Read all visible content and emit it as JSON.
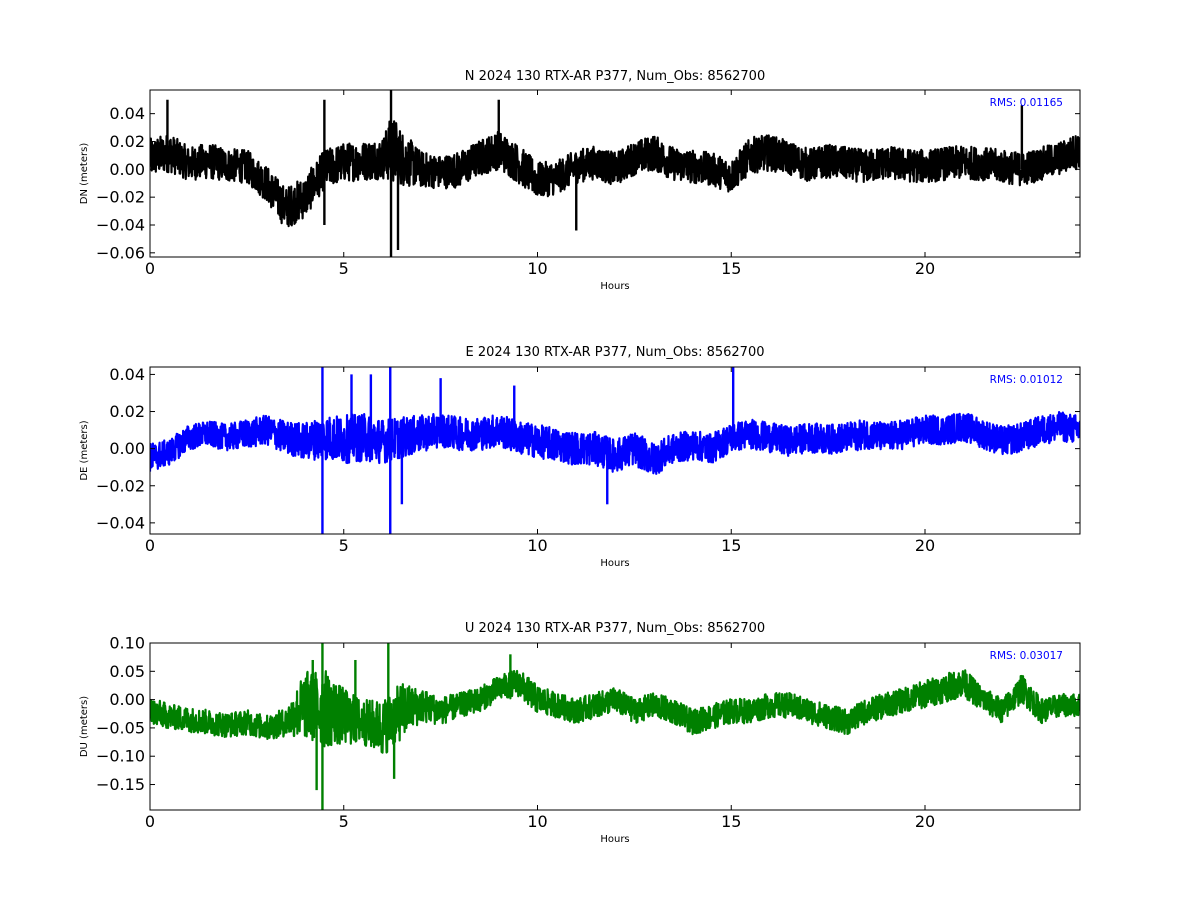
{
  "chart_data": [
    {
      "type": "line",
      "title": "N 2024 130 RTX-AR  P377, Num_Obs: 8562700",
      "xlabel": "Hours",
      "ylabel": "DN (meters)",
      "xlim": [
        0,
        24
      ],
      "ylim": [
        -0.063,
        0.057
      ],
      "xticks": [
        0,
        5,
        10,
        15,
        20
      ],
      "xtick_labels": [
        "0",
        "5",
        "10",
        "15",
        "20"
      ],
      "yticks": [
        0.04,
        0.02,
        0.0,
        -0.02,
        -0.04,
        -0.06
      ],
      "ytick_labels": [
        "0.04",
        "0.02",
        "0.00",
        "−0.02",
        "−0.04",
        "−0.06"
      ],
      "annotation": "RMS:  0.01165",
      "grid": false,
      "series": [
        {
          "color": "#000000",
          "x": [
            0,
            0.5,
            1,
            1.5,
            2,
            2.5,
            3,
            3.5,
            4,
            4.5,
            5,
            5.5,
            6,
            6.25,
            6.5,
            7,
            7.5,
            8,
            8.5,
            9,
            9.5,
            10,
            10.5,
            11,
            11.5,
            12,
            12.5,
            13,
            13.5,
            14,
            14.5,
            15,
            15.5,
            16,
            16.5,
            17,
            17.5,
            18,
            18.5,
            19,
            19.5,
            20,
            20.5,
            21,
            21.5,
            22,
            22.5,
            23,
            23.5,
            24
          ],
          "values": [
            0.008,
            0.012,
            0.004,
            0.006,
            0.003,
            0.002,
            -0.01,
            -0.028,
            -0.02,
            0.0,
            0.005,
            0.006,
            0.008,
            0.015,
            0.008,
            0.0,
            -0.002,
            0.0,
            0.008,
            0.014,
            0.004,
            -0.008,
            -0.006,
            0.002,
            0.005,
            0.0,
            0.008,
            0.012,
            0.004,
            0.002,
            0.0,
            -0.005,
            0.01,
            0.012,
            0.008,
            0.003,
            0.006,
            0.004,
            0.002,
            0.005,
            0.003,
            0.002,
            0.004,
            0.005,
            0.004,
            0.002,
            0.0,
            0.004,
            0.008,
            0.014
          ],
          "spread": [
            0.014,
            0.014,
            0.012,
            0.013,
            0.012,
            0.012,
            0.013,
            0.015,
            0.015,
            0.014,
            0.014,
            0.014,
            0.015,
            0.025,
            0.02,
            0.013,
            0.012,
            0.013,
            0.013,
            0.014,
            0.014,
            0.013,
            0.012,
            0.012,
            0.012,
            0.012,
            0.012,
            0.013,
            0.012,
            0.012,
            0.012,
            0.012,
            0.013,
            0.013,
            0.012,
            0.012,
            0.012,
            0.012,
            0.012,
            0.012,
            0.012,
            0.012,
            0.012,
            0.012,
            0.012,
            0.012,
            0.012,
            0.012,
            0.012,
            0.013
          ],
          "spikes": [
            [
              4.5,
              0.05
            ],
            [
              4.5,
              -0.04
            ],
            [
              6.22,
              0.057
            ],
            [
              6.22,
              -0.063
            ],
            [
              6.4,
              -0.058
            ],
            [
              11.0,
              -0.044
            ],
            [
              9.0,
              0.05
            ],
            [
              22.5,
              0.046
            ],
            [
              0.45,
              0.05
            ]
          ]
        }
      ]
    },
    {
      "type": "line",
      "title": "E 2024 130 RTX-AR  P377, Num_Obs: 8562700",
      "xlabel": "Hours",
      "ylabel": "DE (meters)",
      "xlim": [
        0,
        24
      ],
      "ylim": [
        -0.046,
        0.044
      ],
      "xticks": [
        0,
        5,
        10,
        15,
        20
      ],
      "xtick_labels": [
        "0",
        "5",
        "10",
        "15",
        "20"
      ],
      "yticks": [
        0.04,
        0.02,
        0.0,
        -0.02,
        -0.04
      ],
      "ytick_labels": [
        "0.04",
        "0.02",
        "0.00",
        "−0.02",
        "−0.04"
      ],
      "annotation": "RMS:  0.01012",
      "grid": false,
      "series": [
        {
          "color": "#0000ff",
          "x": [
            0,
            0.5,
            1,
            1.5,
            2,
            2.5,
            3,
            3.5,
            4,
            4.5,
            5,
            5.5,
            6,
            6.5,
            7,
            7.5,
            8,
            8.5,
            9,
            9.5,
            10,
            10.5,
            11,
            11.5,
            12,
            12.5,
            13,
            13.5,
            14,
            14.5,
            15,
            15.5,
            16,
            16.5,
            17,
            17.5,
            18,
            18.5,
            19,
            19.5,
            20,
            20.5,
            21,
            21.5,
            22,
            22.5,
            23,
            23.5,
            24
          ],
          "values": [
            -0.005,
            -0.002,
            0.006,
            0.008,
            0.006,
            0.008,
            0.01,
            0.006,
            0.004,
            0.006,
            0.005,
            0.006,
            0.004,
            0.006,
            0.008,
            0.01,
            0.008,
            0.008,
            0.01,
            0.006,
            0.004,
            0.002,
            0.0,
            0.0,
            -0.004,
            0.0,
            -0.006,
            0.0,
            0.002,
            0.0,
            0.006,
            0.008,
            0.006,
            0.004,
            0.006,
            0.005,
            0.006,
            0.008,
            0.006,
            0.008,
            0.01,
            0.01,
            0.012,
            0.008,
            0.004,
            0.006,
            0.01,
            0.012,
            0.01
          ],
          "spread": [
            0.008,
            0.007,
            0.007,
            0.007,
            0.007,
            0.008,
            0.008,
            0.009,
            0.01,
            0.012,
            0.013,
            0.013,
            0.012,
            0.011,
            0.01,
            0.009,
            0.009,
            0.009,
            0.009,
            0.009,
            0.009,
            0.009,
            0.009,
            0.009,
            0.009,
            0.009,
            0.009,
            0.008,
            0.008,
            0.008,
            0.008,
            0.008,
            0.008,
            0.008,
            0.008,
            0.008,
            0.008,
            0.008,
            0.008,
            0.008,
            0.008,
            0.008,
            0.008,
            0.008,
            0.008,
            0.008,
            0.008,
            0.008,
            0.008
          ],
          "spikes": [
            [
              4.45,
              0.044
            ],
            [
              4.45,
              -0.046
            ],
            [
              6.2,
              0.044
            ],
            [
              6.2,
              -0.046
            ],
            [
              5.2,
              0.04
            ],
            [
              5.7,
              0.04
            ],
            [
              6.5,
              -0.03
            ],
            [
              7.5,
              0.038
            ],
            [
              15.05,
              0.044
            ],
            [
              11.8,
              -0.03
            ],
            [
              9.4,
              0.034
            ]
          ]
        }
      ]
    },
    {
      "type": "line",
      "title": "U 2024 130 RTX-AR  P377, Num_Obs: 8562700",
      "xlabel": "Hours",
      "ylabel": "DU (meters)",
      "xlim": [
        0,
        24
      ],
      "ylim": [
        -0.195,
        0.1
      ],
      "xticks": [
        0,
        5,
        10,
        15,
        20
      ],
      "xtick_labels": [
        "0",
        "5",
        "10",
        "15",
        "20"
      ],
      "yticks": [
        0.1,
        0.05,
        0.0,
        -0.05,
        -0.1,
        -0.15
      ],
      "ytick_labels": [
        "0.10",
        "0.05",
        "0.00",
        "−0.05",
        "−0.10",
        "−0.15"
      ],
      "annotation": "RMS:  0.03017",
      "grid": false,
      "series": [
        {
          "color": "#008000",
          "x": [
            0,
            0.5,
            1,
            1.5,
            2,
            2.5,
            3,
            3.5,
            4,
            4.5,
            5,
            5.5,
            6,
            6.5,
            7,
            7.5,
            8,
            8.5,
            9,
            9.5,
            10,
            10.5,
            11,
            11.5,
            12,
            12.5,
            13,
            13.5,
            14,
            14.5,
            15,
            15.5,
            16,
            16.5,
            17,
            17.5,
            18,
            18.5,
            19,
            19.5,
            20,
            20.5,
            21,
            21.5,
            22,
            22.5,
            23,
            23.5,
            24
          ],
          "values": [
            -0.02,
            -0.03,
            -0.035,
            -0.04,
            -0.045,
            -0.04,
            -0.05,
            -0.04,
            -0.01,
            -0.015,
            -0.03,
            -0.04,
            -0.05,
            -0.02,
            -0.01,
            -0.02,
            -0.01,
            0.0,
            0.02,
            0.03,
            0.0,
            -0.01,
            -0.02,
            -0.01,
            0.0,
            -0.02,
            -0.01,
            -0.02,
            -0.04,
            -0.03,
            -0.02,
            -0.02,
            -0.01,
            -0.01,
            -0.02,
            -0.03,
            -0.04,
            -0.02,
            -0.01,
            0.0,
            0.01,
            0.02,
            0.03,
            0.0,
            -0.02,
            0.02,
            -0.02,
            -0.01,
            -0.01
          ],
          "spread": [
            0.025,
            0.022,
            0.022,
            0.022,
            0.022,
            0.022,
            0.022,
            0.025,
            0.06,
            0.07,
            0.05,
            0.04,
            0.05,
            0.05,
            0.03,
            0.025,
            0.022,
            0.022,
            0.022,
            0.025,
            0.025,
            0.022,
            0.022,
            0.022,
            0.022,
            0.022,
            0.022,
            0.022,
            0.022,
            0.022,
            0.022,
            0.022,
            0.022,
            0.022,
            0.022,
            0.022,
            0.022,
            0.022,
            0.022,
            0.022,
            0.025,
            0.025,
            0.025,
            0.022,
            0.022,
            0.025,
            0.022,
            0.02,
            0.02
          ],
          "spikes": [
            [
              4.45,
              0.1
            ],
            [
              4.45,
              -0.195
            ],
            [
              6.15,
              0.1
            ],
            [
              4.2,
              0.07
            ],
            [
              5.3,
              0.07
            ],
            [
              9.3,
              0.08
            ],
            [
              4.3,
              -0.16
            ],
            [
              6.3,
              -0.14
            ]
          ]
        }
      ]
    }
  ]
}
